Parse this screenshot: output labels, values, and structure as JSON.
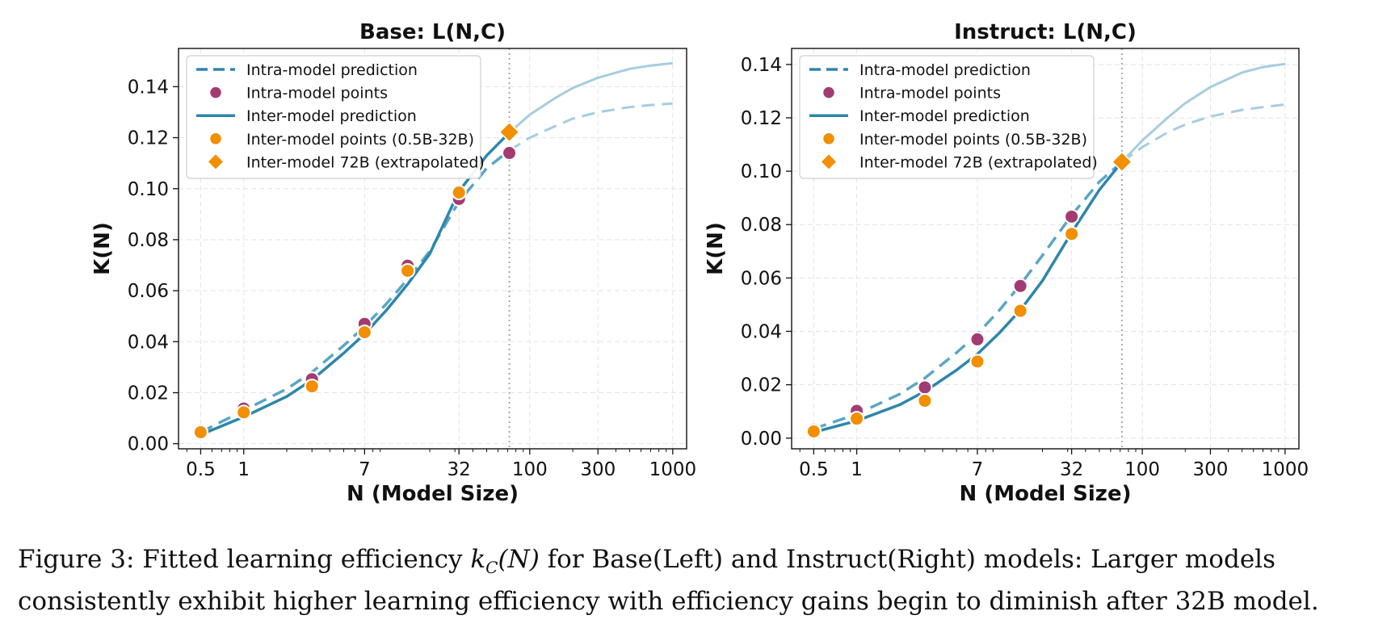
{
  "chart_data": [
    {
      "type": "line",
      "title": "Base: L(N,C)",
      "xlabel": "N (Model Size)",
      "ylabel": "K(N)",
      "xscale": "log",
      "xlim": [
        0.35,
        1250
      ],
      "ylim": [
        -0.002,
        0.155
      ],
      "xticks": [
        0.5,
        1,
        7,
        32,
        100,
        300,
        1000
      ],
      "xtick_labels": [
        "0.5",
        "1",
        "7",
        "32",
        "100",
        "300",
        "1000"
      ],
      "yticks": [
        0.0,
        0.02,
        0.04,
        0.06,
        0.08,
        0.1,
        0.12,
        0.14
      ],
      "ytick_labels": [
        "0.00",
        "0.02",
        "0.04",
        "0.06",
        "0.08",
        "0.10",
        "0.12",
        "0.14"
      ],
      "grid": true,
      "extrapolation_marker_x": 72,
      "legend_position": "top-left",
      "series": [
        {
          "name": "Intra-model prediction",
          "kind": "dashed-line",
          "color": "#2e86ab",
          "x": [
            0.5,
            1,
            2,
            3,
            5,
            7,
            10,
            14,
            20,
            32,
            50,
            72,
            100,
            150,
            200,
            300,
            500,
            700,
            1000
          ],
          "y": [
            0.0045,
            0.013,
            0.0215,
            0.028,
            0.0385,
            0.046,
            0.055,
            0.0645,
            0.0755,
            0.095,
            0.108,
            0.115,
            0.12,
            0.1245,
            0.1275,
            0.13,
            0.132,
            0.1328,
            0.1334
          ]
        },
        {
          "name": "Intra-model points",
          "kind": "points",
          "color": "#a23b72",
          "x": [
            0.5,
            1,
            3,
            7,
            14,
            32,
            72
          ],
          "y": [
            0.0045,
            0.0138,
            0.0253,
            0.047,
            0.0698,
            0.096,
            0.114
          ]
        },
        {
          "name": "Inter-model prediction",
          "kind": "solid-line",
          "color": "#2e86ab",
          "x": [
            0.5,
            1,
            2,
            3,
            5,
            7,
            10,
            14,
            20,
            32,
            50,
            72,
            100,
            150,
            200,
            300,
            500,
            700,
            1000
          ],
          "y": [
            0.0035,
            0.0105,
            0.0185,
            0.025,
            0.0355,
            0.043,
            0.0525,
            0.0625,
            0.0745,
            0.099,
            0.113,
            0.122,
            0.129,
            0.1355,
            0.1395,
            0.1435,
            0.147,
            0.1483,
            0.1492
          ]
        },
        {
          "name": "Inter-model points (0.5B-32B)",
          "kind": "points",
          "color": "#f18f01",
          "x": [
            0.5,
            1,
            3,
            7,
            14,
            32
          ],
          "y": [
            0.0045,
            0.0123,
            0.0225,
            0.0437,
            0.0678,
            0.0985
          ]
        },
        {
          "name": "Inter-model 72B (extrapolated)",
          "kind": "diamond",
          "color": "#f18f01",
          "x": [
            72
          ],
          "y": [
            0.1222
          ]
        }
      ]
    },
    {
      "type": "line",
      "title": "Instruct: L(N,C)",
      "xlabel": "N (Model Size)",
      "ylabel": "K(N)",
      "xscale": "log",
      "xlim": [
        0.35,
        1250
      ],
      "ylim": [
        -0.004,
        0.146
      ],
      "xticks": [
        0.5,
        1,
        7,
        32,
        100,
        300,
        1000
      ],
      "xtick_labels": [
        "0.5",
        "1",
        "7",
        "32",
        "100",
        "300",
        "1000"
      ],
      "yticks": [
        0.0,
        0.02,
        0.04,
        0.06,
        0.08,
        0.1,
        0.12,
        0.14
      ],
      "ytick_labels": [
        "0.00",
        "0.02",
        "0.04",
        "0.06",
        "0.08",
        "0.10",
        "0.12",
        "0.14"
      ],
      "grid": true,
      "extrapolation_marker_x": 72,
      "legend_position": "top-left",
      "series": [
        {
          "name": "Intra-model prediction",
          "kind": "dashed-line",
          "color": "#2e86ab",
          "x": [
            0.5,
            1,
            2,
            3,
            5,
            7,
            10,
            14,
            20,
            32,
            50,
            72,
            100,
            150,
            200,
            300,
            500,
            700,
            1000
          ],
          "y": [
            0.0035,
            0.009,
            0.0165,
            0.0225,
            0.032,
            0.039,
            0.048,
            0.0575,
            0.0685,
            0.0835,
            0.096,
            0.1035,
            0.109,
            0.1145,
            0.1175,
            0.1205,
            0.123,
            0.124,
            0.125
          ]
        },
        {
          "name": "Intra-model points",
          "kind": "points",
          "color": "#a23b72",
          "x": [
            0.5,
            1,
            3,
            7,
            14,
            32
          ],
          "y": [
            0.0032,
            0.0102,
            0.019,
            0.037,
            0.057,
            0.083
          ]
        },
        {
          "name": "Inter-model prediction",
          "kind": "solid-line",
          "color": "#2e86ab",
          "x": [
            0.5,
            1,
            2,
            3,
            5,
            7,
            10,
            14,
            20,
            32,
            50,
            72,
            100,
            150,
            200,
            300,
            500,
            700,
            1000
          ],
          "y": [
            0.0022,
            0.0065,
            0.0125,
            0.0175,
            0.0255,
            0.0315,
            0.0395,
            0.048,
            0.059,
            0.077,
            0.093,
            0.1035,
            0.1115,
            0.12,
            0.1255,
            0.1315,
            0.137,
            0.139,
            0.1402
          ]
        },
        {
          "name": "Inter-model points (0.5B-32B)",
          "kind": "points",
          "color": "#f18f01",
          "x": [
            0.5,
            1,
            3,
            7,
            14,
            32
          ],
          "y": [
            0.0025,
            0.0073,
            0.014,
            0.0287,
            0.0477,
            0.0765
          ]
        },
        {
          "name": "Inter-model 72B (extrapolated)",
          "kind": "diamond",
          "color": "#f18f01",
          "x": [
            72
          ],
          "y": [
            0.1035
          ]
        }
      ]
    }
  ],
  "caption": {
    "prefix": "Figure 3: Fitted learning efficiency ",
    "math_k": "k",
    "math_sub": "C",
    "math_arg": "(N)",
    "rest": " for Base(Left) and Instruct(Right) models: Larger models consistently exhibit higher learning efficiency with efficiency gains begin to diminish after 32B model."
  }
}
